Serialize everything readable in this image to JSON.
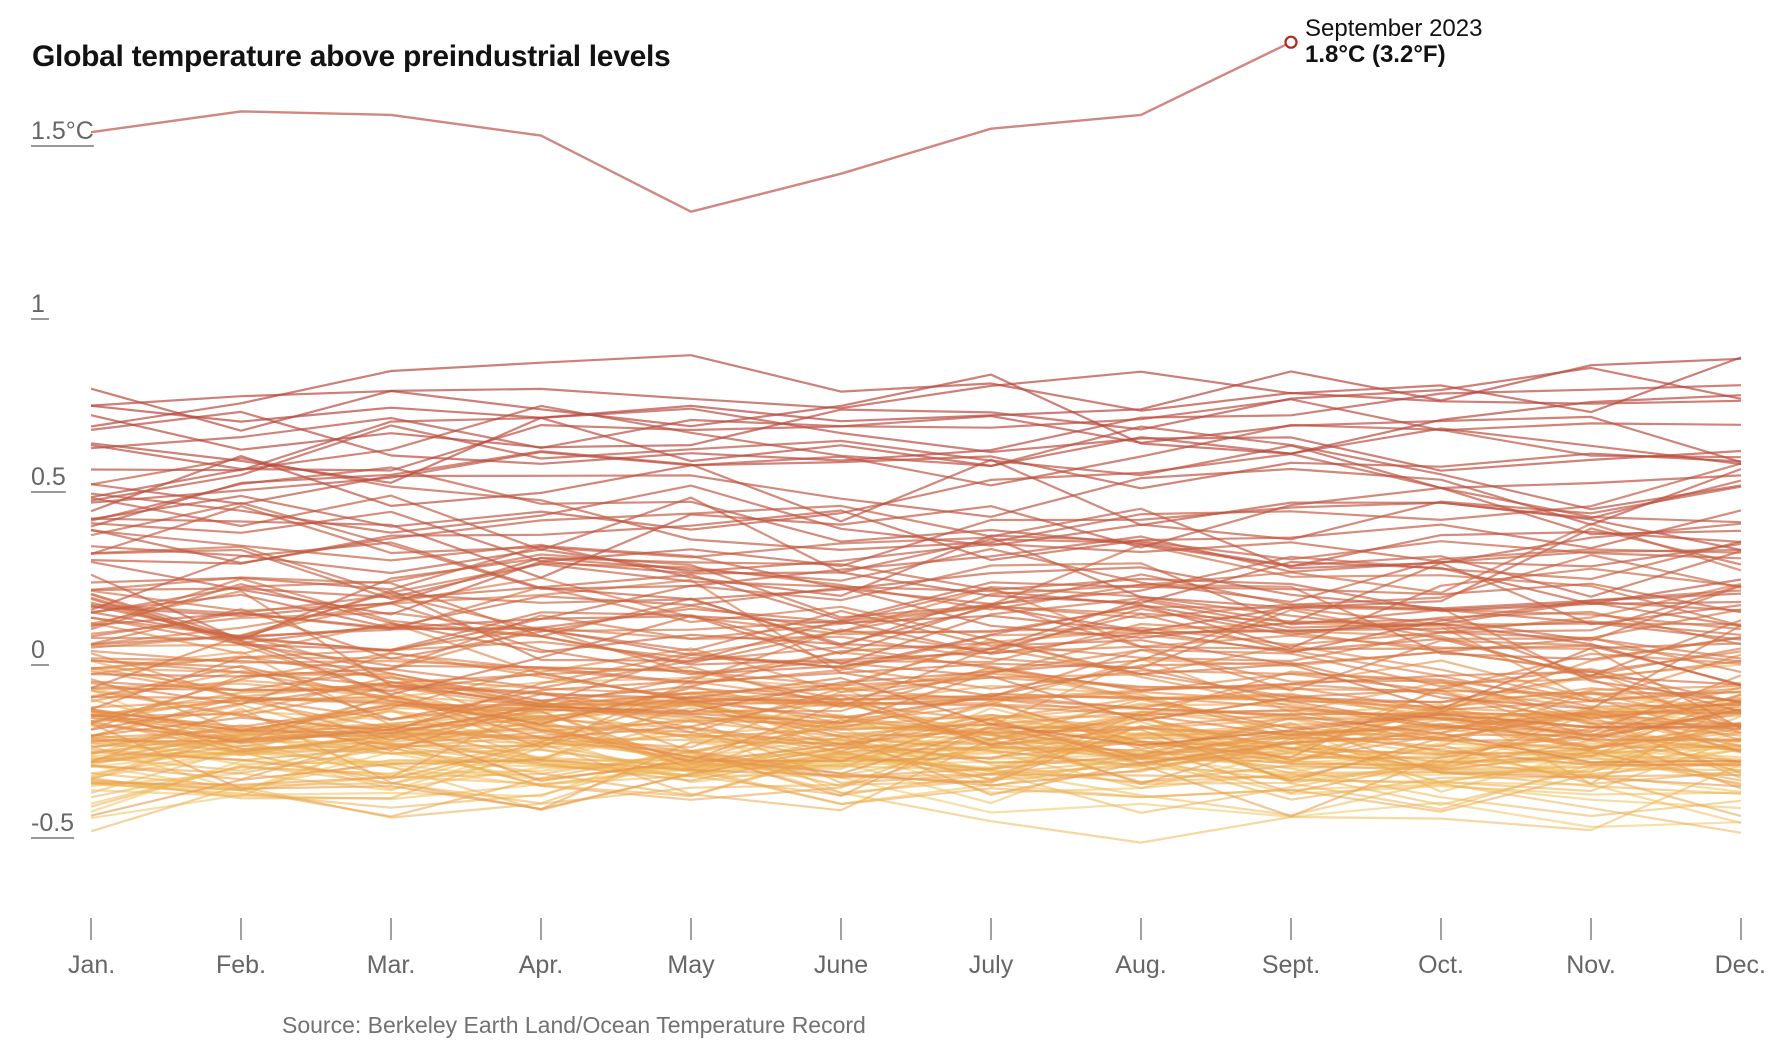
{
  "colors": {
    "warm": "#b7463e",
    "cool": "#f1c45e",
    "mid": "#e48c4a",
    "text": "#121212",
    "axis": "#666666",
    "highlight_marker": "#b02a22"
  },
  "chart_data": {
    "type": "line",
    "title": "Global temperature above preindustrial levels",
    "xlabel": "",
    "ylabel": "",
    "categories": [
      "Jan.",
      "Feb.",
      "Mar.",
      "Apr.",
      "May",
      "June",
      "July",
      "Aug.",
      "Sept.",
      "Oct.",
      "Nov.",
      "Dec."
    ],
    "yticks": [
      {
        "value": 1.5,
        "label": "1.5°C"
      },
      {
        "value": 1.0,
        "label": "1"
      },
      {
        "value": 0.5,
        "label": "0.5"
      },
      {
        "value": 0.0,
        "label": "0"
      },
      {
        "value": -0.5,
        "label": "-0.5"
      }
    ],
    "ylim": [
      -0.75,
      1.85
    ],
    "series_count": 174,
    "series_description": "One line per year of monthly global temperature anomalies; individual values are not labeled in the image, so the page generates a band of lines from the range and trend shown, colored yellow (cooler) to dark red (warmer).",
    "highlight": {
      "series": "2023",
      "values": [
        1.54,
        1.6,
        1.59,
        1.53,
        1.31,
        1.42,
        1.55,
        1.59,
        1.8
      ],
      "annotation": {
        "month": "Sept.",
        "date_label": "September 2023",
        "value_label": "1.8°C (3.2°F)",
        "value": 1.8
      }
    }
  },
  "source": "Source: Berkeley Earth Land/Ocean Temperature Record"
}
